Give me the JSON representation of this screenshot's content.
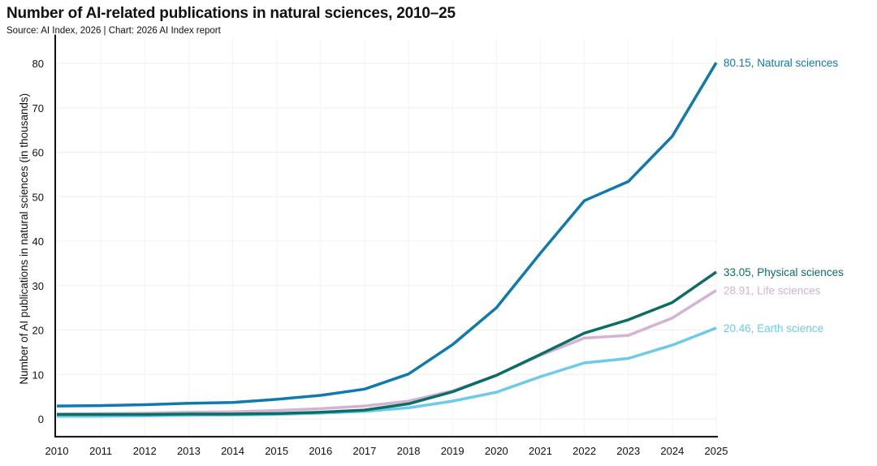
{
  "chart_data": {
    "type": "line",
    "title": "Number of AI-related publications in natural sciences, 2010–25",
    "subtitle": "Source: AI Index, 2026 | Chart: 2026 AI Index report",
    "xlabel": "",
    "ylabel": "Number of AI publications in natural sciences (in thousands)",
    "x": [
      2010,
      2011,
      2012,
      2013,
      2014,
      2015,
      2016,
      2017,
      2018,
      2019,
      2020,
      2021,
      2022,
      2023,
      2024,
      2025
    ],
    "ylim": [
      -4,
      85
    ],
    "yticks": [
      0,
      10,
      20,
      30,
      40,
      50,
      60,
      70,
      80
    ],
    "grid": true,
    "series": [
      {
        "name": "Natural sciences",
        "end_label": "80.15, Natural sciences",
        "color": "#1079ad",
        "values": [
          2.9,
          3.0,
          3.2,
          3.5,
          3.7,
          4.4,
          5.3,
          6.7,
          10.1,
          16.7,
          25.0,
          37.3,
          49.1,
          53.4,
          63.6,
          80.15
        ]
      },
      {
        "name": "Physical sciences",
        "end_label": "33.05, Physical sciences",
        "color": "#0b6e66",
        "values": [
          1.0,
          1.0,
          1.0,
          1.1,
          1.1,
          1.2,
          1.5,
          2.0,
          3.4,
          6.1,
          9.8,
          14.5,
          19.3,
          22.3,
          26.2,
          33.05
        ]
      },
      {
        "name": "Life sciences",
        "end_label": "28.91, Life sciences",
        "color": "#d4b2d2",
        "values": [
          1.1,
          1.2,
          1.3,
          1.5,
          1.6,
          1.9,
          2.3,
          2.9,
          4.0,
          6.3,
          9.8,
          14.3,
          18.2,
          18.8,
          22.7,
          28.91
        ]
      },
      {
        "name": "Earth science",
        "end_label": "20.46, Earth science",
        "color": "#6ccbe8",
        "values": [
          0.6,
          0.6,
          0.7,
          0.8,
          0.9,
          1.0,
          1.3,
          1.7,
          2.5,
          4.0,
          6.0,
          9.5,
          12.6,
          13.6,
          16.6,
          20.46
        ]
      }
    ]
  }
}
